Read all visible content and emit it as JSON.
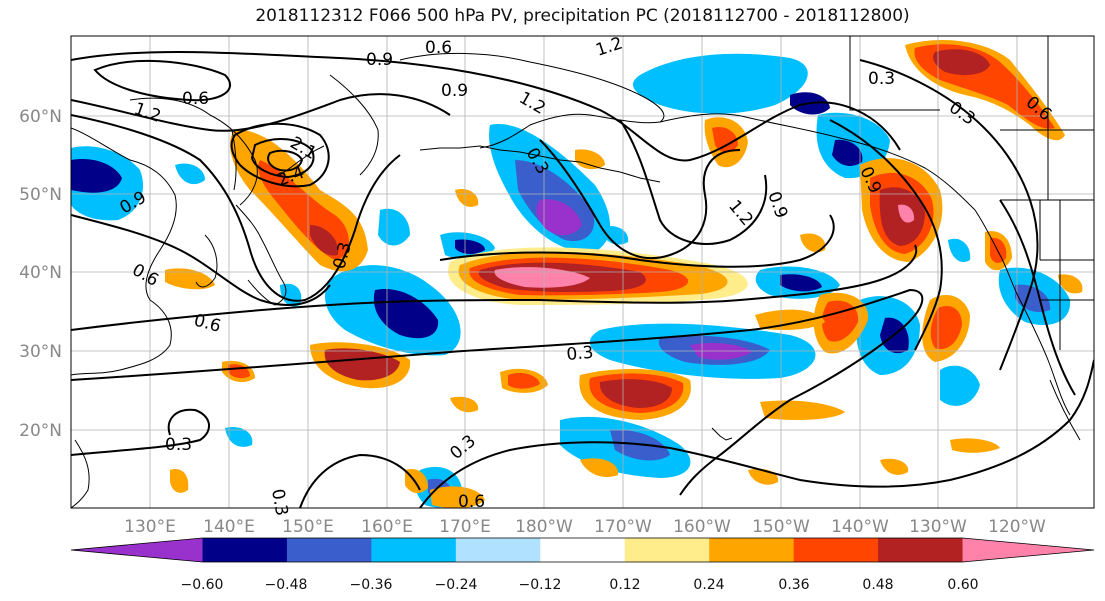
{
  "title": "2018112312 F066 500 hPa PV, precipitation PC (2018112700 - 2018112800)",
  "latitude_labels": [
    "60°N",
    "50°N",
    "40°N",
    "30°N",
    "20°N"
  ],
  "longitude_labels": [
    "130°E",
    "140°E",
    "150°E",
    "160°E",
    "170°E",
    "180°W",
    "170°W",
    "160°W",
    "150°W",
    "140°W",
    "130°W",
    "120°W"
  ],
  "contour_labels": [
    "0.6",
    "0.9",
    "1.2",
    "0.9",
    "0.6",
    "1.2",
    "1.2",
    "0.3",
    "0.6",
    "0.3",
    "2.1",
    "2.4",
    "0.9",
    "0.6",
    "0.6",
    "0.3",
    "0.3",
    "0.3",
    "0.6",
    "0.3",
    "0.9",
    "1.2",
    "0.9",
    "0.3",
    "0.3"
  ],
  "colorbar": {
    "colors": [
      "#9932cc",
      "#000088",
      "#3a5fcd",
      "#00bfff",
      "#b0e2ff",
      "#ffffff",
      "#ffec8b",
      "#ffa500",
      "#ff4500",
      "#b22222",
      "#ff82ab"
    ],
    "tick_labels": [
      "−0.60",
      "−0.48",
      "−0.36",
      "−0.24",
      "−0.12",
      "0.12",
      "0.24",
      "0.36",
      "0.48",
      "0.60"
    ]
  }
}
